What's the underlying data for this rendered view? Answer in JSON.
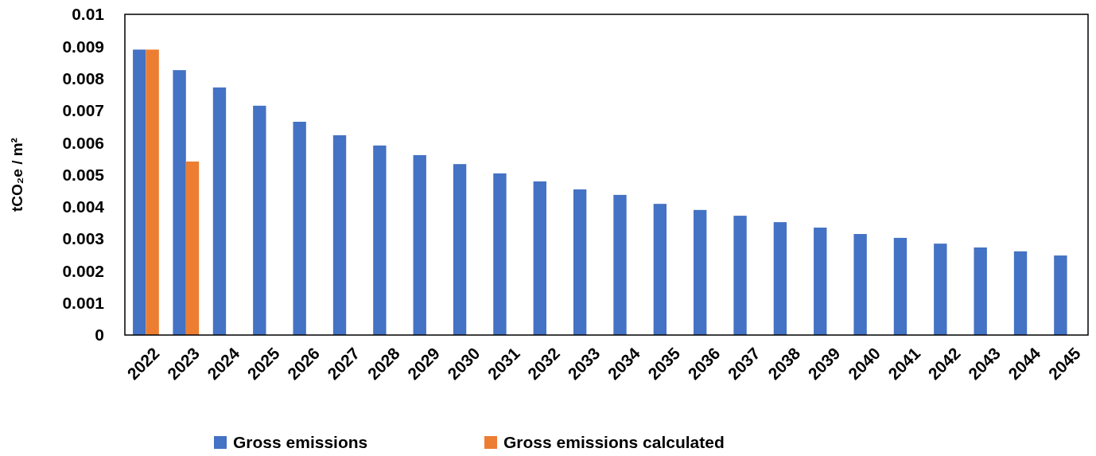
{
  "chart_data": {
    "type": "bar",
    "ylabel": "tCO₂e / m²",
    "categories": [
      "2022",
      "2023",
      "2024",
      "2025",
      "2026",
      "2027",
      "2028",
      "2029",
      "2030",
      "2031",
      "2032",
      "2033",
      "2034",
      "2035",
      "2036",
      "2037",
      "2038",
      "2039",
      "2040",
      "2041",
      "2042",
      "2043",
      "2044",
      "2045"
    ],
    "series": [
      {
        "name": "Gross emissions",
        "color": "#4472c4",
        "values": [
          0.0089,
          0.00826,
          0.00772,
          0.00715,
          0.00665,
          0.00623,
          0.00591,
          0.00561,
          0.00533,
          0.00504,
          0.00479,
          0.00454,
          0.00437,
          0.00409,
          0.0039,
          0.00372,
          0.00352,
          0.00335,
          0.00315,
          0.00303,
          0.00285,
          0.00273,
          0.00261,
          0.00248
        ]
      },
      {
        "name": "Gross emissions calculated",
        "color": "#ed7d31",
        "values": [
          0.0089,
          0.00541,
          null,
          null,
          null,
          null,
          null,
          null,
          null,
          null,
          null,
          null,
          null,
          null,
          null,
          null,
          null,
          null,
          null,
          null,
          null,
          null,
          null,
          null
        ]
      }
    ],
    "ylim": [
      0,
      0.01
    ],
    "yticks": [
      0,
      0.001,
      0.002,
      0.003,
      0.004,
      0.005,
      0.006,
      0.007,
      0.008,
      0.009,
      0.01
    ],
    "grid": false,
    "legend": "bottom"
  }
}
